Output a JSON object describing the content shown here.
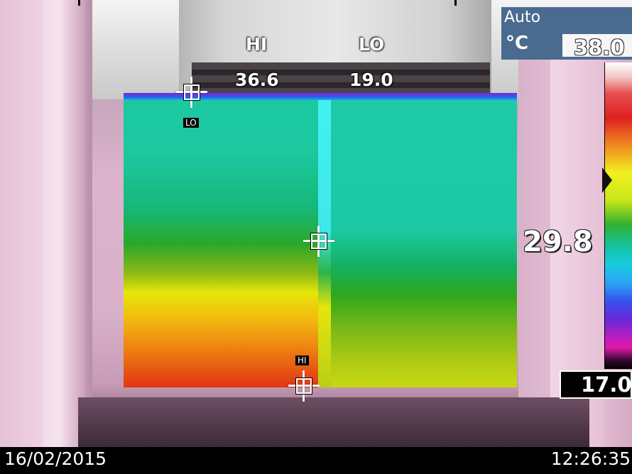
{
  "header": {
    "hi_label": "HI",
    "lo_label": "LO",
    "hi_value": "36.6",
    "lo_value": "19.0"
  },
  "center_reading": "29.8",
  "markers": {
    "lo_tag": "LO",
    "hi_tag": "HI"
  },
  "scale": {
    "mode": "Auto",
    "unit": "°C",
    "max": "38.0",
    "min": "17.0",
    "palette": [
      "#ffffff",
      "#e02020",
      "#f08820",
      "#f2f020",
      "#30b030",
      "#18cce0",
      "#3650ec",
      "#b01ec2",
      "#000000"
    ]
  },
  "footer": {
    "date": "16/02/2015",
    "time": "12:26:35"
  }
}
